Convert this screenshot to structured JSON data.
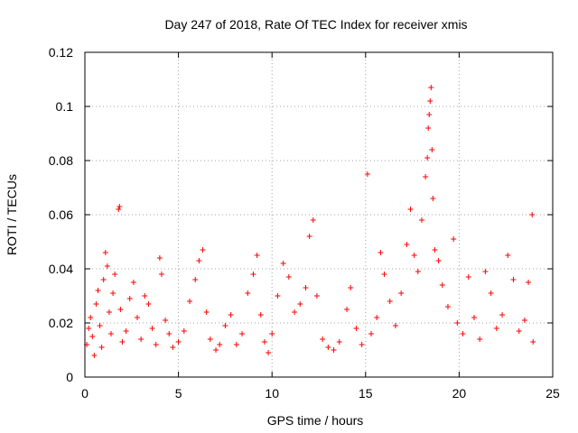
{
  "chart_data": {
    "type": "scatter",
    "title": "Day 247 of 2018, Rate Of TEC Index for receiver xmis",
    "xlabel": "GPS time / hours",
    "ylabel": "ROTI / TECUs",
    "xlim": [
      0,
      25
    ],
    "ylim": [
      0,
      0.12
    ],
    "x_ticks": [
      0,
      5,
      10,
      15,
      20,
      25
    ],
    "x_tick_labels": [
      "0",
      "5",
      "10",
      "15",
      "20",
      "25"
    ],
    "y_ticks": [
      0,
      0.02,
      0.04,
      0.06,
      0.08,
      0.1,
      0.12
    ],
    "y_tick_labels": [
      "0",
      "0.02",
      "0.04",
      "0.06",
      "0.08",
      "0.1",
      "0.12"
    ],
    "grid": true,
    "marker": "+",
    "color": "#ff0000",
    "points": [
      [
        0.1,
        0.012
      ],
      [
        0.2,
        0.018
      ],
      [
        0.3,
        0.022
      ],
      [
        0.4,
        0.015
      ],
      [
        0.5,
        0.008
      ],
      [
        0.6,
        0.027
      ],
      [
        0.7,
        0.032
      ],
      [
        0.8,
        0.019
      ],
      [
        0.9,
        0.011
      ],
      [
        1.0,
        0.036
      ],
      [
        1.1,
        0.046
      ],
      [
        1.2,
        0.041
      ],
      [
        1.3,
        0.024
      ],
      [
        1.4,
        0.016
      ],
      [
        1.5,
        0.031
      ],
      [
        1.6,
        0.038
      ],
      [
        1.8,
        0.062
      ],
      [
        1.85,
        0.063
      ],
      [
        1.9,
        0.025
      ],
      [
        2.0,
        0.013
      ],
      [
        2.2,
        0.017
      ],
      [
        2.4,
        0.029
      ],
      [
        2.6,
        0.035
      ],
      [
        2.8,
        0.022
      ],
      [
        3.0,
        0.014
      ],
      [
        3.2,
        0.03
      ],
      [
        3.4,
        0.027
      ],
      [
        3.6,
        0.018
      ],
      [
        3.8,
        0.012
      ],
      [
        4.0,
        0.044
      ],
      [
        4.1,
        0.038
      ],
      [
        4.3,
        0.021
      ],
      [
        4.5,
        0.016
      ],
      [
        4.7,
        0.011
      ],
      [
        5.0,
        0.013
      ],
      [
        5.3,
        0.017
      ],
      [
        5.6,
        0.028
      ],
      [
        5.9,
        0.036
      ],
      [
        6.1,
        0.043
      ],
      [
        6.3,
        0.047
      ],
      [
        6.5,
        0.024
      ],
      [
        6.7,
        0.014
      ],
      [
        7.0,
        0.01
      ],
      [
        7.2,
        0.012
      ],
      [
        7.5,
        0.019
      ],
      [
        7.8,
        0.023
      ],
      [
        8.1,
        0.012
      ],
      [
        8.4,
        0.016
      ],
      [
        8.7,
        0.031
      ],
      [
        9.0,
        0.038
      ],
      [
        9.2,
        0.045
      ],
      [
        9.4,
        0.023
      ],
      [
        9.6,
        0.013
      ],
      [
        9.8,
        0.009
      ],
      [
        10.0,
        0.016
      ],
      [
        10.3,
        0.03
      ],
      [
        10.6,
        0.042
      ],
      [
        10.9,
        0.037
      ],
      [
        11.2,
        0.024
      ],
      [
        11.5,
        0.027
      ],
      [
        11.8,
        0.033
      ],
      [
        12.0,
        0.052
      ],
      [
        12.2,
        0.058
      ],
      [
        12.4,
        0.03
      ],
      [
        12.7,
        0.014
      ],
      [
        13.0,
        0.011
      ],
      [
        13.3,
        0.01
      ],
      [
        13.6,
        0.013
      ],
      [
        14.0,
        0.025
      ],
      [
        14.2,
        0.033
      ],
      [
        14.5,
        0.018
      ],
      [
        14.8,
        0.012
      ],
      [
        15.1,
        0.075
      ],
      [
        15.3,
        0.016
      ],
      [
        15.6,
        0.022
      ],
      [
        15.8,
        0.046
      ],
      [
        16.0,
        0.038
      ],
      [
        16.3,
        0.028
      ],
      [
        16.6,
        0.019
      ],
      [
        16.9,
        0.031
      ],
      [
        17.2,
        0.049
      ],
      [
        17.4,
        0.062
      ],
      [
        17.6,
        0.045
      ],
      [
        17.8,
        0.039
      ],
      [
        18.0,
        0.058
      ],
      [
        18.2,
        0.074
      ],
      [
        18.3,
        0.081
      ],
      [
        18.35,
        0.092
      ],
      [
        18.4,
        0.097
      ],
      [
        18.45,
        0.102
      ],
      [
        18.5,
        0.107
      ],
      [
        18.55,
        0.084
      ],
      [
        18.6,
        0.066
      ],
      [
        18.7,
        0.047
      ],
      [
        18.9,
        0.043
      ],
      [
        19.1,
        0.034
      ],
      [
        19.4,
        0.026
      ],
      [
        19.7,
        0.051
      ],
      [
        19.9,
        0.02
      ],
      [
        20.2,
        0.016
      ],
      [
        20.5,
        0.037
      ],
      [
        20.8,
        0.022
      ],
      [
        21.1,
        0.014
      ],
      [
        21.4,
        0.039
      ],
      [
        21.7,
        0.031
      ],
      [
        22.0,
        0.018
      ],
      [
        22.3,
        0.023
      ],
      [
        22.6,
        0.045
      ],
      [
        22.9,
        0.036
      ],
      [
        23.2,
        0.017
      ],
      [
        23.5,
        0.021
      ],
      [
        23.7,
        0.035
      ],
      [
        23.9,
        0.06
      ],
      [
        23.95,
        0.013
      ]
    ]
  }
}
